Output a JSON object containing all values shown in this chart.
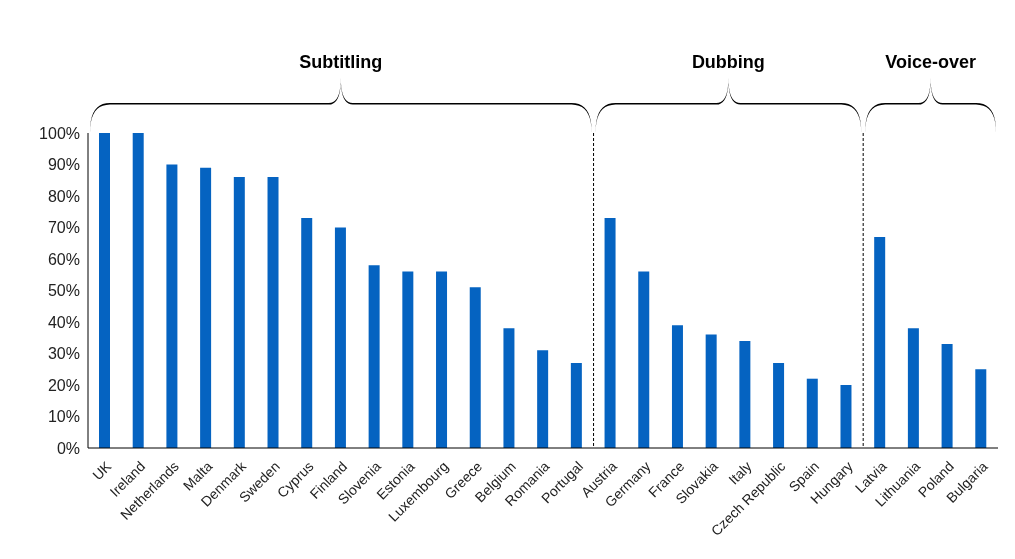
{
  "chart_data": {
    "type": "bar",
    "categories": [
      "UK",
      "Ireland",
      "Netherlands",
      "Malta",
      "Denmark",
      "Sweden",
      "Cyprus",
      "Finland",
      "Slovenia",
      "Estonia",
      "Luxembourg",
      "Greece",
      "Belgium",
      "Romania",
      "Portugal",
      "Austria",
      "Germany",
      "France",
      "Slovakia",
      "Italy",
      "Czech Republic",
      "Spain",
      "Hungary",
      "Latvia",
      "Lithuania",
      "Poland",
      "Bulgaria"
    ],
    "values": [
      100,
      100,
      90,
      89,
      86,
      86,
      73,
      70,
      58,
      56,
      56,
      51,
      38,
      31,
      27,
      73,
      56,
      39,
      36,
      34,
      27,
      22,
      20,
      67,
      38,
      33,
      25
    ],
    "color": "#0563c1",
    "ylim": [
      0,
      100
    ],
    "yticks": [
      {
        "value": 0,
        "label": "0%"
      },
      {
        "value": 10,
        "label": "10%"
      },
      {
        "value": 20,
        "label": "20%"
      },
      {
        "value": 30,
        "label": "30%"
      },
      {
        "value": 40,
        "label": "40%"
      },
      {
        "value": 50,
        "label": "50%"
      },
      {
        "value": 60,
        "label": "60%"
      },
      {
        "value": 70,
        "label": "70%"
      },
      {
        "value": 80,
        "label": "80%"
      },
      {
        "value": 90,
        "label": "90%"
      },
      {
        "value": 100,
        "label": "100%"
      }
    ],
    "annotations": [
      "Subtitling",
      "Dubbing",
      "Voice-over"
    ],
    "grid": false,
    "legend": false
  }
}
